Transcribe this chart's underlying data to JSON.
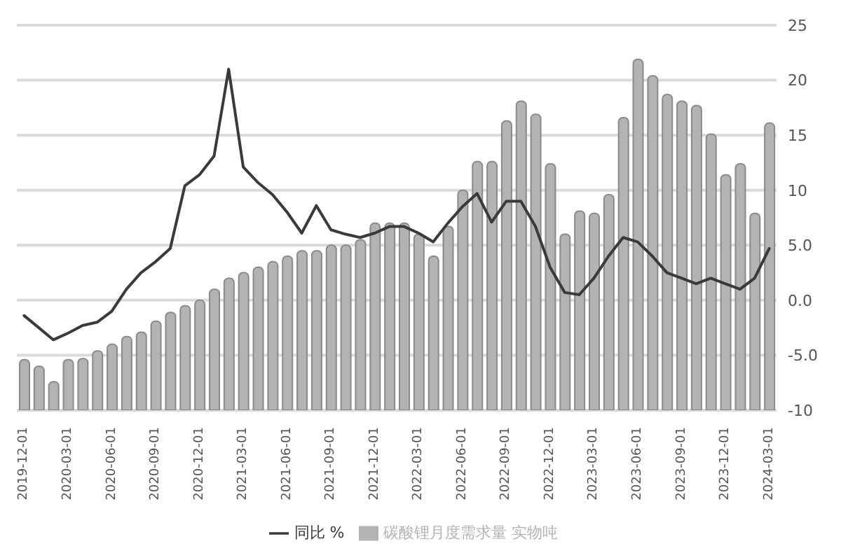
{
  "chart_data": {
    "type": "bar",
    "categories": [
      "2019-12-01",
      null,
      null,
      "2020-03-01",
      null,
      null,
      "2020-06-01",
      null,
      null,
      "2020-09-01",
      null,
      null,
      "2020-12-01",
      null,
      null,
      "2021-03-01",
      null,
      null,
      "2021-06-01",
      null,
      null,
      "2021-09-01",
      null,
      null,
      "2021-12-01",
      null,
      null,
      "2022-03-01",
      null,
      null,
      "2022-06-01",
      null,
      null,
      "2022-09-01",
      null,
      null,
      "2022-12-01",
      null,
      null,
      "2023-03-01",
      null,
      null,
      "2023-06-01",
      null,
      null,
      "2023-09-01",
      null,
      null,
      "2023-12-01",
      null,
      null,
      "2024-03-01"
    ],
    "series": [
      {
        "name": "碳酸锂月度需求量 实物吨",
        "color": "#b3b3b3",
        "values": [
          4.6,
          4,
          2.6,
          4.6,
          4.7,
          5.4,
          6,
          6.7,
          7.1,
          8.1,
          8.9,
          9.5,
          10,
          11,
          12,
          12.5,
          13,
          13.5,
          14,
          14.5,
          14.5,
          15,
          15,
          15.5,
          17,
          17,
          17,
          16,
          14,
          16.7,
          20,
          22.6,
          22.6,
          26.3,
          28.1,
          26.9,
          22.4,
          16,
          18.1,
          17.9,
          19.6,
          26.6,
          31.9,
          30.4,
          28.7,
          28.1,
          27.7,
          25.1,
          21.4,
          22.4,
          17.9,
          26.1
        ],
        "base": [
          -10,
          -10,
          -10,
          -10,
          -10,
          -10,
          -10,
          -10,
          -10,
          -10,
          -10,
          -10,
          -10,
          -10,
          -10,
          -10,
          -10,
          -10,
          -10,
          -10,
          -10,
          -10,
          -10,
          -10,
          -10,
          -10,
          -10,
          -10,
          -10,
          -10,
          -10,
          -10,
          -10,
          -10,
          -10,
          -10,
          -10,
          -10,
          -10,
          -10,
          -10,
          -10,
          -10,
          -10,
          -10,
          -10,
          -10,
          -10,
          -10,
          -10,
          -10,
          -10
        ]
      },
      {
        "name": "同比 %",
        "type": "line",
        "color": "#3a3a3a",
        "values": [
          -1.4,
          -2.5,
          -3.6,
          -3,
          -2.3,
          -2,
          -1,
          1,
          2.5,
          3.5,
          4.7,
          10.4,
          11.4,
          13.1,
          21,
          12.1,
          10.7,
          9.6,
          8,
          6.1,
          8.6,
          6.4,
          6,
          5.7,
          6.1,
          6.7,
          6.7,
          6.1,
          5.3,
          7,
          8.5,
          9.7,
          7.1,
          9,
          9,
          6.7,
          3,
          0.7,
          0.5,
          2,
          4,
          5.7,
          5.3,
          4,
          2.5,
          2,
          1.5,
          2,
          1.5,
          1,
          2,
          4.7
        ]
      }
    ],
    "ylim": [
      -10,
      25
    ],
    "yticks": [
      {
        "value": -10,
        "label": "-10"
      },
      {
        "value": -5,
        "label": "-5.0"
      },
      {
        "value": 0,
        "label": "0.0"
      },
      {
        "value": 5,
        "label": "5.0"
      },
      10,
      15,
      20,
      25
    ],
    "grid": "y",
    "legend": "bottom",
    "marker": "none",
    "line_style": "solid"
  }
}
